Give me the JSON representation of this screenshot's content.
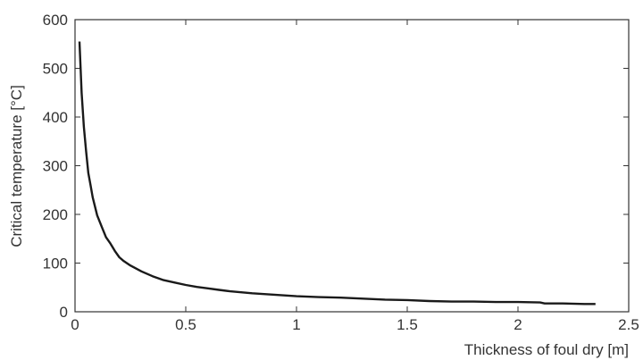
{
  "chart_data": {
    "type": "line",
    "title": "",
    "xlabel": "Thickness of foul dry [m]",
    "ylabel": "Critical temperature [°C]",
    "xlim": [
      0,
      2.5
    ],
    "ylim": [
      0,
      600
    ],
    "xticks": [
      0,
      0.5,
      1,
      1.5,
      2,
      2.5
    ],
    "xtick_labels": [
      "0",
      "0.5",
      "1",
      "1.5",
      "2",
      "2.5"
    ],
    "yticks": [
      0,
      100,
      200,
      300,
      400,
      500,
      600
    ],
    "ytick_labels": [
      "0",
      "100",
      "200",
      "300",
      "400",
      "500",
      "600"
    ],
    "grid": false,
    "line_color": "#1a1a1a",
    "series": [
      {
        "x": [
          0.02,
          0.03,
          0.04,
          0.05,
          0.06,
          0.07,
          0.08,
          0.1,
          0.12,
          0.14,
          0.16,
          0.18,
          0.2,
          0.22,
          0.25,
          0.3,
          0.35,
          0.4,
          0.45,
          0.5,
          0.55,
          0.6,
          0.65,
          0.7,
          0.8,
          0.9,
          1.0,
          1.1,
          1.2,
          1.3,
          1.4,
          1.5,
          1.6,
          1.7,
          1.8,
          1.9,
          2.0,
          2.1,
          2.12,
          2.2,
          2.3,
          2.35
        ],
        "values": [
          555,
          450,
          380,
          330,
          285,
          260,
          235,
          198,
          175,
          153,
          140,
          125,
          112,
          104,
          95,
          83,
          73,
          65,
          60,
          55,
          51,
          48,
          45,
          42,
          38,
          35,
          32,
          30,
          29,
          27,
          25,
          24,
          22,
          21,
          21,
          20,
          20,
          19,
          17,
          17,
          16,
          16
        ]
      }
    ]
  }
}
